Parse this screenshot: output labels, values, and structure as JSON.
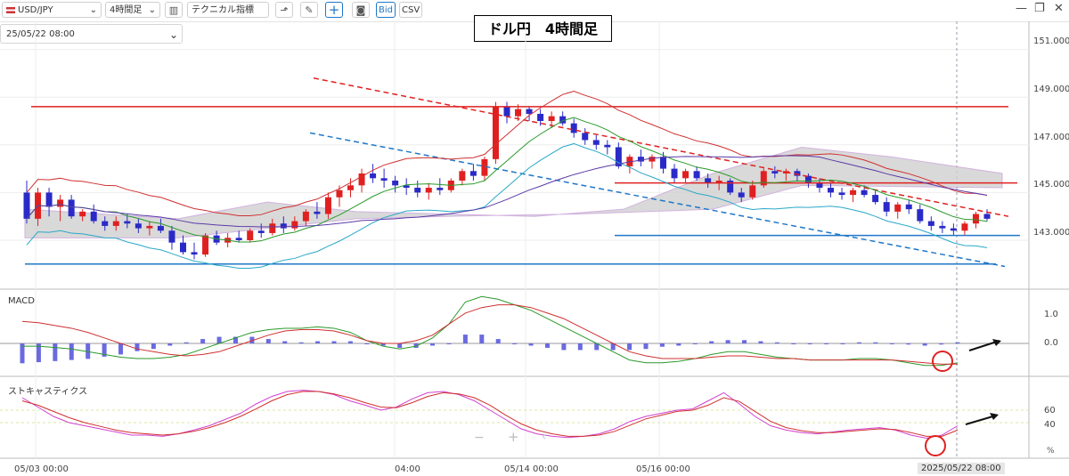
{
  "toolbar": {
    "symbol": "USD/JPY",
    "timeframe": "4時間足",
    "indicators": "テクニカル指標",
    "bid": "Bid",
    "csv": "CSV"
  },
  "date_selector": "25/05/22 08:00",
  "chart_title": "ドル円　4時間足",
  "colors": {
    "bull": "#e02020",
    "bear": "#2a2ac8",
    "hline_red": "#e02020",
    "hline_blue": "#1f77c8",
    "cloud": "#d0d0d0"
  },
  "chart_data": [
    {
      "type": "candlestick",
      "ylim": [
        142.0,
        152.0
      ],
      "yticks": [
        "151.000",
        "149.000",
        "147.000",
        "145.000",
        "143.000"
      ],
      "xticks": [
        "05/03 00:00",
        "04:00",
        "05/14 00:00",
        "05/16 00:00",
        "2025/05/22 08:00"
      ],
      "candles": [
        [
          145.0,
          145.5,
          143.7,
          143.9
        ],
        [
          143.9,
          145.2,
          143.6,
          145.0
        ],
        [
          145.0,
          145.2,
          144.0,
          144.4
        ],
        [
          144.4,
          144.9,
          143.8,
          144.7
        ],
        [
          144.7,
          144.9,
          143.9,
          144.0
        ],
        [
          144.0,
          144.3,
          143.8,
          144.2
        ],
        [
          144.2,
          144.5,
          143.7,
          143.8
        ],
        [
          143.8,
          144.0,
          143.4,
          143.6
        ],
        [
          143.6,
          144.0,
          143.4,
          143.8
        ],
        [
          143.8,
          144.1,
          143.5,
          143.7
        ],
        [
          143.7,
          143.9,
          143.3,
          143.5
        ],
        [
          143.5,
          143.8,
          143.2,
          143.6
        ],
        [
          143.6,
          143.9,
          143.3,
          143.4
        ],
        [
          143.4,
          143.6,
          142.6,
          142.9
        ],
        [
          142.9,
          143.2,
          142.4,
          142.5
        ],
        [
          142.5,
          142.9,
          142.2,
          142.4
        ],
        [
          142.4,
          143.3,
          142.3,
          143.2
        ],
        [
          143.2,
          143.4,
          142.8,
          142.9
        ],
        [
          142.9,
          143.3,
          142.7,
          143.1
        ],
        [
          143.1,
          143.4,
          142.9,
          143.0
        ],
        [
          143.0,
          143.5,
          142.9,
          143.4
        ],
        [
          143.4,
          143.7,
          143.1,
          143.3
        ],
        [
          143.3,
          143.9,
          143.2,
          143.7
        ],
        [
          143.7,
          144.0,
          143.3,
          143.5
        ],
        [
          143.5,
          144.0,
          143.4,
          143.8
        ],
        [
          143.8,
          144.3,
          143.6,
          144.2
        ],
        [
          144.2,
          144.6,
          143.9,
          144.1
        ],
        [
          144.1,
          145.0,
          143.9,
          144.8
        ],
        [
          144.8,
          145.3,
          144.4,
          145.1
        ],
        [
          145.1,
          145.6,
          144.8,
          145.3
        ],
        [
          145.3,
          146.0,
          145.0,
          145.8
        ],
        [
          145.8,
          146.2,
          145.4,
          145.6
        ],
        [
          145.6,
          146.0,
          145.2,
          145.5
        ],
        [
          145.5,
          145.7,
          145.0,
          145.3
        ],
        [
          145.3,
          145.6,
          144.9,
          145.2
        ],
        [
          145.2,
          145.5,
          144.8,
          145.0
        ],
        [
          145.0,
          145.4,
          144.7,
          145.2
        ],
        [
          145.2,
          145.6,
          144.9,
          145.1
        ],
        [
          145.1,
          145.6,
          145.0,
          145.5
        ],
        [
          145.5,
          146.0,
          145.3,
          145.9
        ],
        [
          145.9,
          146.2,
          145.5,
          145.7
        ],
        [
          145.7,
          146.5,
          145.5,
          146.4
        ],
        [
          146.4,
          148.8,
          146.2,
          148.6
        ],
        [
          148.6,
          148.8,
          147.9,
          148.2
        ],
        [
          148.2,
          148.7,
          148.0,
          148.5
        ],
        [
          148.5,
          148.6,
          148.0,
          148.3
        ],
        [
          148.3,
          148.5,
          147.8,
          148.0
        ],
        [
          148.0,
          148.4,
          147.7,
          148.2
        ],
        [
          148.2,
          148.4,
          147.8,
          147.9
        ],
        [
          147.9,
          148.1,
          147.3,
          147.5
        ],
        [
          147.5,
          147.7,
          147.0,
          147.2
        ],
        [
          147.2,
          147.4,
          146.8,
          147.0
        ],
        [
          147.0,
          147.2,
          146.6,
          146.9
        ],
        [
          146.9,
          147.1,
          146.0,
          146.1
        ],
        [
          146.1,
          146.6,
          145.8,
          146.5
        ],
        [
          146.5,
          146.8,
          146.1,
          146.3
        ],
        [
          146.3,
          146.6,
          146.0,
          146.5
        ],
        [
          146.5,
          146.7,
          145.8,
          146.0
        ],
        [
          146.0,
          146.2,
          145.4,
          145.6
        ],
        [
          145.6,
          146.0,
          145.4,
          145.9
        ],
        [
          145.9,
          146.1,
          145.5,
          145.6
        ],
        [
          145.6,
          145.8,
          145.2,
          145.4
        ],
        [
          145.4,
          145.7,
          145.1,
          145.5
        ],
        [
          145.5,
          145.6,
          144.9,
          145.0
        ],
        [
          145.0,
          145.2,
          144.6,
          144.8
        ],
        [
          144.8,
          145.5,
          144.7,
          145.3
        ],
        [
          145.3,
          146.0,
          145.2,
          145.9
        ],
        [
          145.9,
          146.1,
          145.6,
          145.8
        ],
        [
          145.8,
          146.0,
          145.5,
          145.9
        ],
        [
          145.9,
          146.0,
          145.5,
          145.7
        ],
        [
          145.7,
          145.8,
          145.2,
          145.4
        ],
        [
          145.4,
          145.6,
          145.0,
          145.2
        ],
        [
          145.2,
          145.4,
          144.8,
          145.0
        ],
        [
          145.0,
          145.2,
          144.7,
          144.9
        ],
        [
          144.9,
          145.2,
          144.6,
          145.1
        ],
        [
          145.1,
          145.3,
          144.8,
          144.9
        ],
        [
          144.9,
          145.1,
          144.5,
          144.6
        ],
        [
          144.6,
          144.8,
          144.0,
          144.2
        ],
        [
          144.2,
          144.6,
          143.9,
          144.5
        ],
        [
          144.5,
          144.7,
          144.1,
          144.3
        ],
        [
          144.3,
          144.5,
          143.7,
          143.8
        ],
        [
          143.8,
          144.0,
          143.4,
          143.6
        ],
        [
          143.6,
          143.8,
          143.3,
          143.5
        ],
        [
          143.5,
          143.7,
          143.2,
          143.4
        ],
        [
          143.4,
          143.8,
          143.2,
          143.7
        ],
        [
          143.7,
          144.2,
          143.5,
          144.1
        ],
        [
          144.1,
          144.3,
          143.8,
          143.9
        ]
      ],
      "ichimoku_cloud": {
        "upper_start": 144.3,
        "lower_start": 143.1,
        "upper_end": 145.8,
        "lower_end": 144.6
      },
      "hlines": [
        148.6,
        145.4,
        143.2,
        142.0
      ],
      "trendlines": [
        {
          "from": [
            0.3,
            149.8
          ],
          "to": [
            0.96,
            144.0
          ],
          "style": "dashed",
          "color": "red"
        },
        {
          "from": [
            0.3,
            147.5
          ],
          "to": [
            0.96,
            141.9
          ],
          "style": "dashed",
          "color": "blue"
        }
      ]
    },
    {
      "type": "macd",
      "title": "MACD",
      "yticks": [
        "1.0",
        "0.0"
      ],
      "ylim": [
        -1.3,
        1.7
      ],
      "macd": [
        -0.1,
        -0.1,
        -0.15,
        -0.2,
        -0.3,
        -0.4,
        -0.5,
        -0.55,
        -0.55,
        -0.5,
        -0.4,
        -0.2,
        0.0,
        0.2,
        0.4,
        0.5,
        0.55,
        0.55,
        0.6,
        0.55,
        0.4,
        0.1,
        -0.1,
        -0.2,
        -0.1,
        0.2,
        0.7,
        1.5,
        1.7,
        1.6,
        1.4,
        1.2,
        0.9,
        0.6,
        0.3,
        0.0,
        -0.3,
        -0.6,
        -0.7,
        -0.7,
        -0.65,
        -0.55,
        -0.4,
        -0.3,
        -0.3,
        -0.4,
        -0.5,
        -0.55,
        -0.6,
        -0.6,
        -0.6,
        -0.55,
        -0.55,
        -0.6,
        -0.7,
        -0.8,
        -0.8,
        -0.7
      ],
      "signal": [
        0.8,
        0.75,
        0.65,
        0.55,
        0.4,
        0.2,
        0.0,
        -0.2,
        -0.3,
        -0.4,
        -0.45,
        -0.4,
        -0.3,
        -0.1,
        0.1,
        0.3,
        0.45,
        0.5,
        0.5,
        0.45,
        0.3,
        0.1,
        0.0,
        0.0,
        0.1,
        0.3,
        0.7,
        1.1,
        1.3,
        1.4,
        1.4,
        1.3,
        1.1,
        0.9,
        0.6,
        0.3,
        0.0,
        -0.3,
        -0.45,
        -0.55,
        -0.55,
        -0.55,
        -0.5,
        -0.45,
        -0.45,
        -0.5,
        -0.55,
        -0.55,
        -0.6,
        -0.6,
        -0.6,
        -0.6,
        -0.6,
        -0.6,
        -0.65,
        -0.7,
        -0.75,
        -0.75
      ]
    },
    {
      "type": "stochastic",
      "title": "ストキャスティクス",
      "yticks": [
        "60",
        "40"
      ],
      "unit": "%",
      "ylim": [
        0,
        100
      ],
      "k": [
        80,
        65,
        50,
        40,
        35,
        30,
        25,
        20,
        20,
        18,
        22,
        28,
        35,
        45,
        55,
        70,
        82,
        90,
        92,
        90,
        85,
        75,
        68,
        60,
        65,
        78,
        88,
        90,
        85,
        75,
        60,
        45,
        30,
        22,
        18,
        16,
        18,
        22,
        30,
        42,
        50,
        55,
        60,
        62,
        75,
        88,
        70,
        50,
        35,
        28,
        24,
        22,
        25,
        28,
        30,
        32,
        28,
        20,
        15,
        20,
        35
      ],
      "d": [
        75,
        68,
        58,
        48,
        40,
        34,
        28,
        24,
        22,
        20,
        22,
        26,
        32,
        40,
        50,
        62,
        75,
        85,
        90,
        90,
        86,
        80,
        72,
        65,
        64,
        72,
        82,
        88,
        86,
        80,
        68,
        52,
        38,
        28,
        22,
        18,
        18,
        20,
        26,
        36,
        46,
        52,
        58,
        60,
        68,
        80,
        74,
        58,
        42,
        32,
        27,
        24,
        24,
        26,
        28,
        30,
        29,
        24,
        18,
        18,
        28
      ]
    }
  ]
}
